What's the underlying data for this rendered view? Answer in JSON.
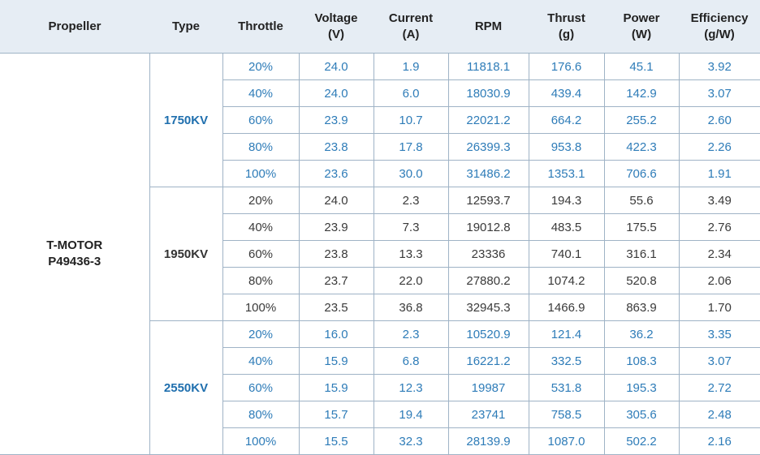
{
  "header": {
    "propeller": "Propeller",
    "type": "Type",
    "throttle": "Throttle",
    "voltage": [
      "Voltage",
      "(V)"
    ],
    "current": [
      "Current",
      "(A)"
    ],
    "rpm": "RPM",
    "thrust": [
      "Thrust",
      "(g)"
    ],
    "power": [
      "Power",
      "(W)"
    ],
    "efficiency": [
      "Efficiency",
      "(g/W)"
    ]
  },
  "propeller": [
    "T-MOTOR",
    "P49436-3"
  ],
  "colors": {
    "blue_text": "#2e7cb8",
    "header_bg": "#e6edf4",
    "border": "#9fb3c6"
  },
  "groups": [
    {
      "type": "1750KV",
      "style": "blue",
      "rows": [
        [
          "20%",
          "24.0",
          "1.9",
          "11818.1",
          "176.6",
          "45.1",
          "3.92"
        ],
        [
          "40%",
          "24.0",
          "6.0",
          "18030.9",
          "439.4",
          "142.9",
          "3.07"
        ],
        [
          "60%",
          "23.9",
          "10.7",
          "22021.2",
          "664.2",
          "255.2",
          "2.60"
        ],
        [
          "80%",
          "23.8",
          "17.8",
          "26399.3",
          "953.8",
          "422.3",
          "2.26"
        ],
        [
          "100%",
          "23.6",
          "30.0",
          "31486.2",
          "1353.1",
          "706.6",
          "1.91"
        ]
      ]
    },
    {
      "type": "1950KV",
      "style": "dark",
      "rows": [
        [
          "20%",
          "24.0",
          "2.3",
          "12593.7",
          "194.3",
          "55.6",
          "3.49"
        ],
        [
          "40%",
          "23.9",
          "7.3",
          "19012.8",
          "483.5",
          "175.5",
          "2.76"
        ],
        [
          "60%",
          "23.8",
          "13.3",
          "23336",
          "740.1",
          "316.1",
          "2.34"
        ],
        [
          "80%",
          "23.7",
          "22.0",
          "27880.2",
          "1074.2",
          "520.8",
          "2.06"
        ],
        [
          "100%",
          "23.5",
          "36.8",
          "32945.3",
          "1466.9",
          "863.9",
          "1.70"
        ]
      ]
    },
    {
      "type": "2550KV",
      "style": "blue",
      "rows": [
        [
          "20%",
          "16.0",
          "2.3",
          "10520.9",
          "121.4",
          "36.2",
          "3.35"
        ],
        [
          "40%",
          "15.9",
          "6.8",
          "16221.2",
          "332.5",
          "108.3",
          "3.07"
        ],
        [
          "60%",
          "15.9",
          "12.3",
          "19987",
          "531.8",
          "195.3",
          "2.72"
        ],
        [
          "80%",
          "15.7",
          "19.4",
          "23741",
          "758.5",
          "305.6",
          "2.48"
        ],
        [
          "100%",
          "15.5",
          "32.3",
          "28139.9",
          "1087.0",
          "502.2",
          "2.16"
        ]
      ]
    }
  ]
}
